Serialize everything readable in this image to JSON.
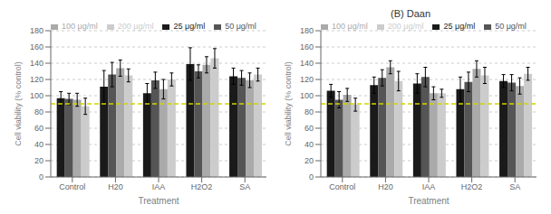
{
  "chart_data": [
    {
      "type": "bar",
      "categories": [
        "Control",
        "H20",
        "IAA",
        "H2O2",
        "SA"
      ],
      "series": [
        {
          "name": "25  μg/ml",
          "color": "#1a1a1a",
          "values": [
            97,
            111,
            103,
            139,
            124
          ],
          "errors": [
            8,
            20,
            12,
            20,
            10
          ]
        },
        {
          "name": "50  μg/ml",
          "color": "#555555",
          "values": [
            96,
            126,
            119,
            130,
            122
          ],
          "errors": [
            7,
            15,
            10,
            8,
            9
          ]
        },
        {
          "name": "100 μg/ml",
          "color": "#aaaaaa",
          "values": [
            95,
            134,
            108,
            138,
            119
          ],
          "errors": [
            8,
            10,
            12,
            10,
            9
          ]
        },
        {
          "name": "200  μg/ml",
          "color": "#cccccc",
          "values": [
            87,
            125,
            120,
            146,
            126
          ],
          "errors": [
            10,
            8,
            8,
            12,
            8
          ]
        }
      ],
      "xlabel": "Treatment",
      "ylabel": "Cell viability (% control)",
      "ylim": [
        0,
        180
      ],
      "yticks": [
        0,
        20,
        40,
        60,
        80,
        100,
        120,
        140,
        160,
        180
      ],
      "hline": 90,
      "hline_color": "#d4d400",
      "legend": "upper left"
    },
    {
      "type": "bar",
      "title": "(B) Daan",
      "categories": [
        "Control",
        "H20",
        "IAA",
        "H2O2",
        "SA"
      ],
      "series": [
        {
          "name": "25  μg/ml",
          "color": "#1a1a1a",
          "values": [
            106,
            113,
            115,
            108,
            118
          ],
          "errors": [
            8,
            10,
            12,
            15,
            8
          ]
        },
        {
          "name": "50  μg/ml",
          "color": "#555555",
          "values": [
            95,
            122,
            123,
            117,
            116
          ],
          "errors": [
            10,
            10,
            12,
            12,
            10
          ]
        },
        {
          "name": "100 μg/ml",
          "color": "#aaaaaa",
          "values": [
            101,
            135,
            103,
            133,
            112
          ],
          "errors": [
            8,
            8,
            8,
            10,
            10
          ]
        },
        {
          "name": "200  μg/ml",
          "color": "#cccccc",
          "values": [
            89,
            118,
            103,
            125,
            127
          ],
          "errors": [
            8,
            12,
            5,
            10,
            8
          ]
        }
      ],
      "xlabel": "Treatment",
      "ylabel": "Cell viability (% control)",
      "ylim": [
        0,
        180
      ],
      "yticks": [
        0,
        20,
        40,
        60,
        80,
        100,
        120,
        140,
        160,
        180
      ],
      "hline": 90,
      "hline_color": "#d4d400",
      "legend": "upper left"
    }
  ]
}
